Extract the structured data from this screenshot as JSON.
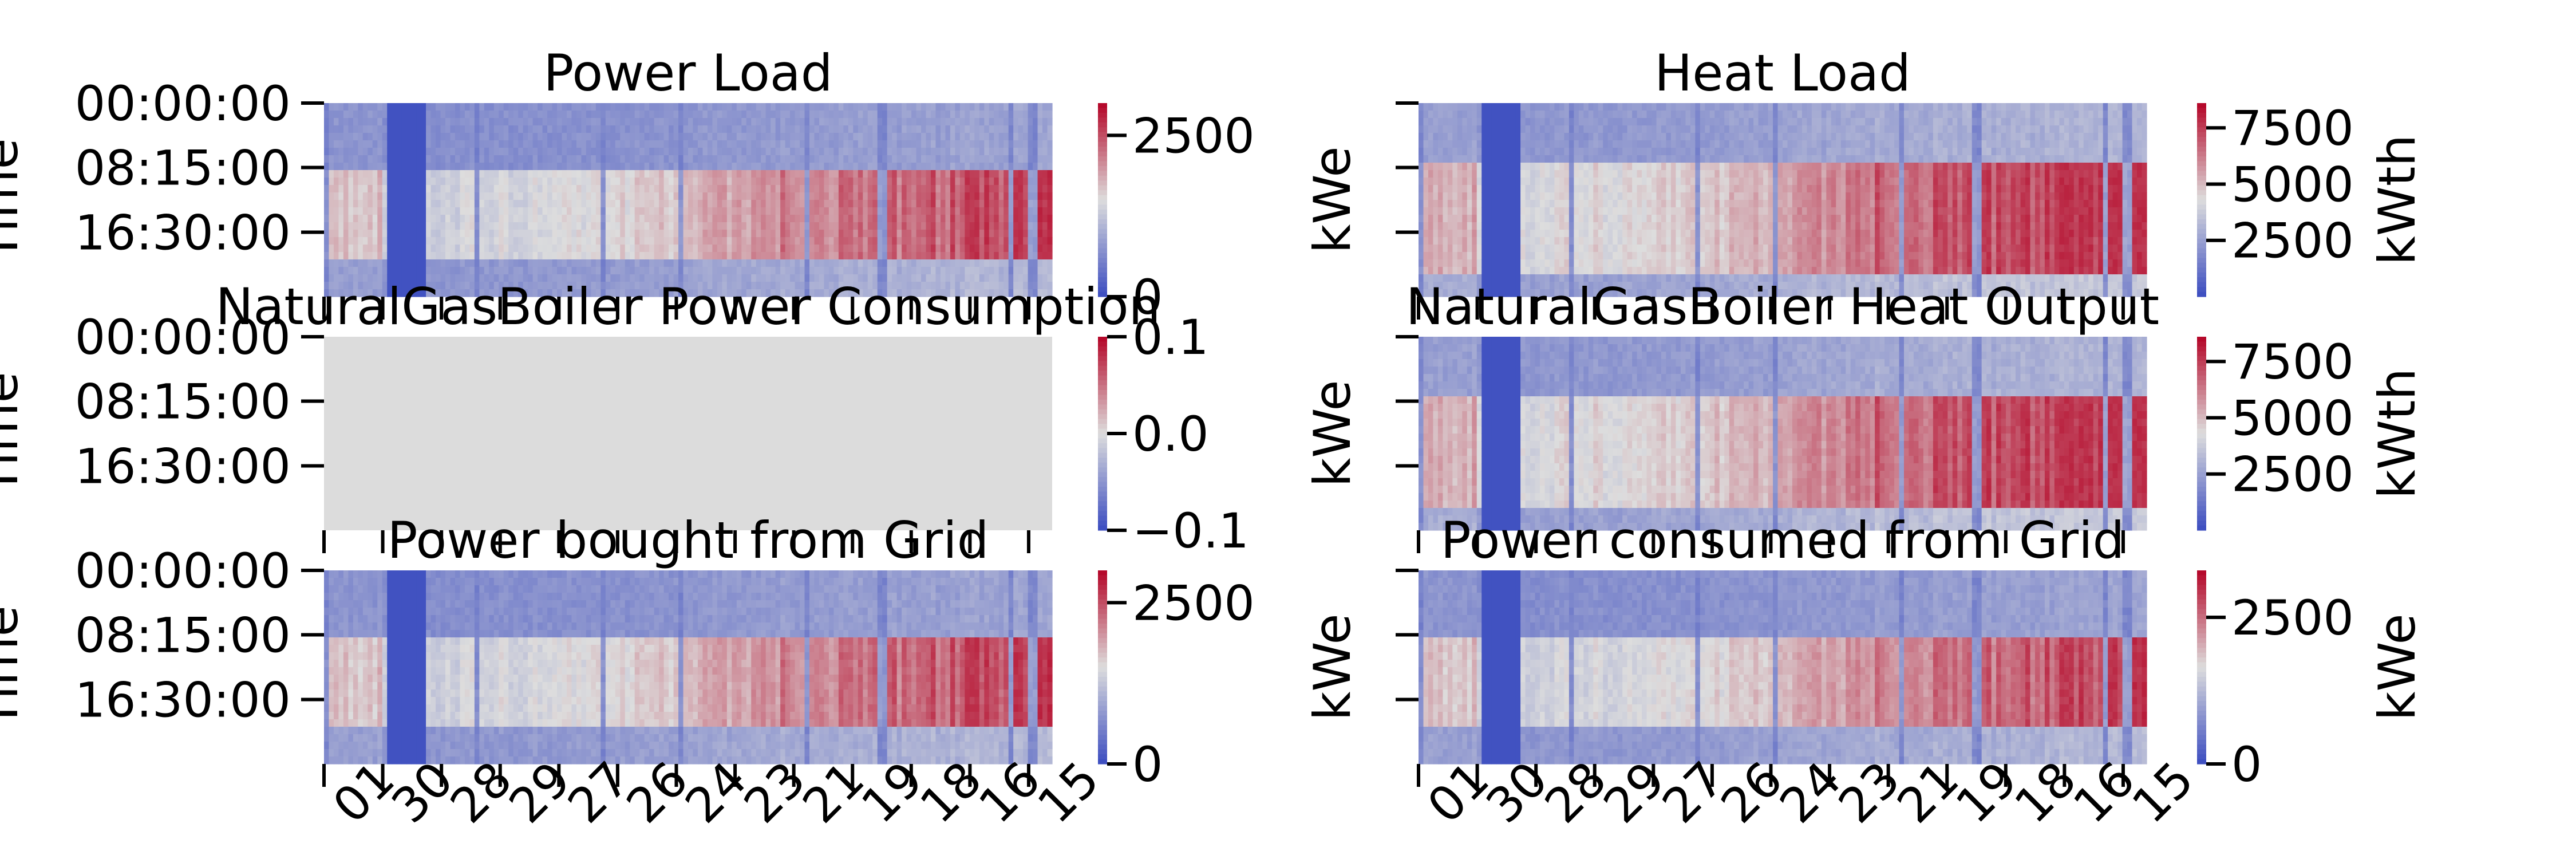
{
  "figure": {
    "colormap": {
      "name": "coolwarm",
      "low": "#3b4cc0",
      "mid": "#dddddd",
      "high": "#b40426"
    },
    "nan_color": "#dcdcdc",
    "ytick_labels": [
      "00:00:00",
      "08:15:00",
      "16:30:00"
    ],
    "xtick_labels": [
      "01",
      "30",
      "28",
      "29",
      "27",
      "26",
      "24",
      "23",
      "21",
      "19",
      "18",
      "16",
      "15"
    ],
    "x_categories_count": 13
  },
  "chart_data": [
    {
      "id": "power-load",
      "type": "heatmap",
      "title": "Power Load",
      "ylabel": "Time",
      "colorbar_label": "",
      "colorbar_range": [
        0,
        3000
      ],
      "colorbar_ticks": [
        {
          "value": 2500,
          "label": "2500"
        },
        {
          "value": 0,
          "label": "0"
        }
      ],
      "profile": "power",
      "all_nan": false
    },
    {
      "id": "heat-load",
      "type": "heatmap",
      "title": "Heat Load",
      "ylabel": "kWe",
      "colorbar_label": "kWth",
      "colorbar_range": [
        0,
        8600
      ],
      "colorbar_ticks": [
        {
          "value": 7500,
          "label": "7500"
        },
        {
          "value": 5000,
          "label": "5000"
        },
        {
          "value": 2500,
          "label": "2500"
        }
      ],
      "profile": "heat",
      "all_nan": false
    },
    {
      "id": "boiler-power",
      "type": "heatmap",
      "title": "NaturalGasBoiler Power Consumption",
      "ylabel": "Time",
      "colorbar_label": "",
      "colorbar_range": [
        -0.1,
        0.1
      ],
      "colorbar_ticks": [
        {
          "value": 0.1,
          "label": "0.1"
        },
        {
          "value": 0.0,
          "label": "0.0"
        },
        {
          "value": -0.1,
          "label": "−0.1"
        }
      ],
      "profile": "none",
      "all_nan": true
    },
    {
      "id": "boiler-heat",
      "type": "heatmap",
      "title": "NaturalGasBoiler Heat Output",
      "ylabel": "kWe",
      "colorbar_label": "kWth",
      "colorbar_range": [
        0,
        8600
      ],
      "colorbar_ticks": [
        {
          "value": 7500,
          "label": "7500"
        },
        {
          "value": 5000,
          "label": "5000"
        },
        {
          "value": 2500,
          "label": "2500"
        }
      ],
      "profile": "heat",
      "all_nan": false
    },
    {
      "id": "grid-bought",
      "type": "heatmap",
      "title": "Power bought from Grid",
      "ylabel": "Time",
      "colorbar_label": "",
      "colorbar_range": [
        0,
        3000
      ],
      "colorbar_ticks": [
        {
          "value": 2500,
          "label": "2500"
        },
        {
          "value": 0,
          "label": "0"
        }
      ],
      "profile": "power",
      "all_nan": false
    },
    {
      "id": "grid-consumed",
      "type": "heatmap",
      "title": "Power consumed from Grid",
      "ylabel": "kWe",
      "colorbar_label": "kWe",
      "colorbar_range": [
        0,
        3300
      ],
      "colorbar_ticks": [
        {
          "value": 2500,
          "label": "2500"
        },
        {
          "value": 0,
          "label": "0"
        }
      ],
      "profile": "power",
      "all_nan": false
    }
  ]
}
